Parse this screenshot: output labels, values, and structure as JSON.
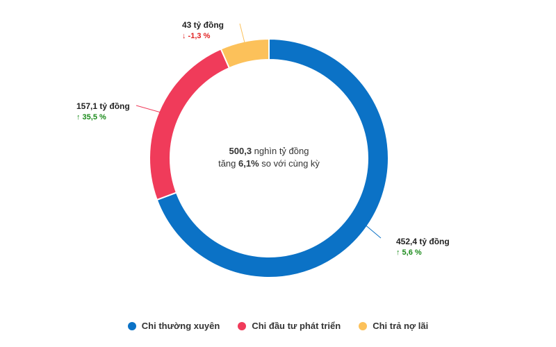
{
  "chart_data": {
    "type": "donut",
    "categories": [
      "Chi thường xuyên",
      "Chi đầu tư phát triển",
      "Chi trả nợ lãi"
    ],
    "values": [
      452.4,
      157.1,
      43
    ],
    "value_labels": [
      "452,4 tỷ đồng",
      "157,1 tỷ đồng",
      "43 tỷ đồng"
    ],
    "changes": [
      {
        "arrow": "↑",
        "text": "5,6 %",
        "direction": "up"
      },
      {
        "arrow": "↑",
        "text": "35,5 %",
        "direction": "up"
      },
      {
        "arrow": "↓",
        "text": "-1,3 %",
        "direction": "down"
      }
    ],
    "colors": [
      "#0b72c6",
      "#f03b5a",
      "#fcc15a"
    ],
    "center": {
      "line1_bold": "500,3",
      "line1_rest": " nghìn tỷ đồng",
      "line2_pre": "tăng ",
      "line2_bold": "6,1%",
      "line2_rest": " so với cùng kỳ"
    },
    "legend_position": "bottom",
    "colors_change": {
      "up": "#1a8a1a",
      "down": "#e02020"
    }
  }
}
